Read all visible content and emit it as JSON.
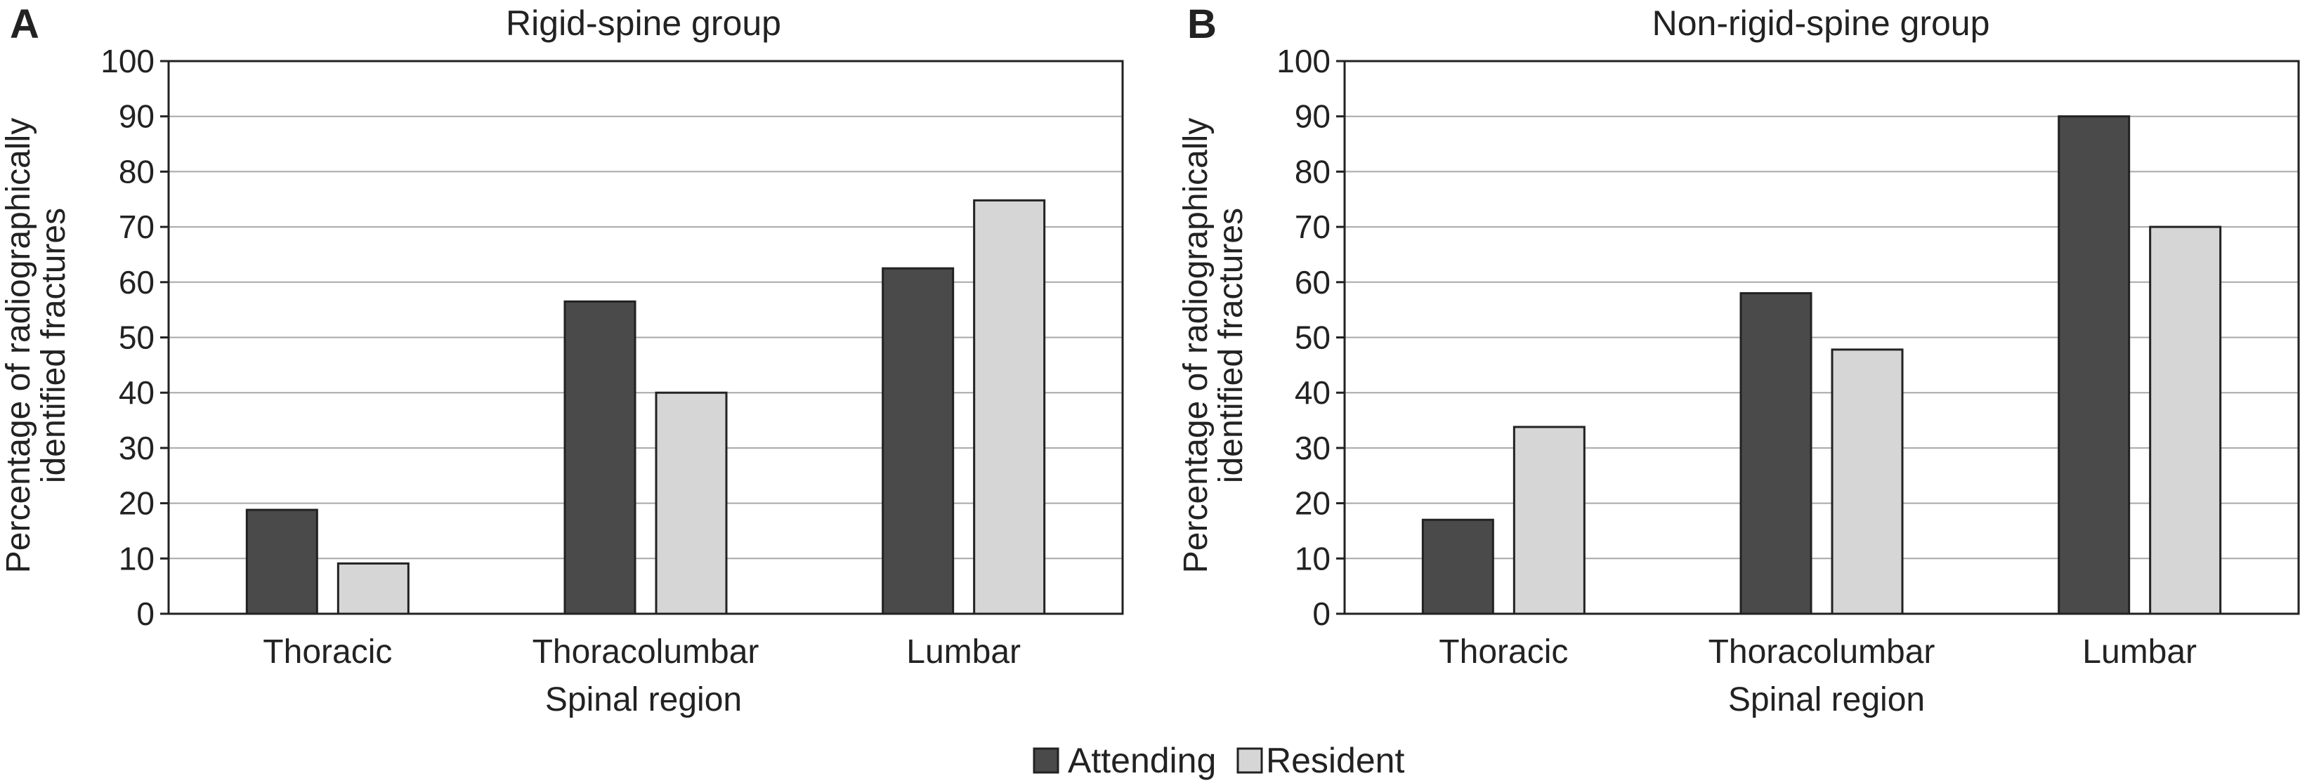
{
  "chart_data": [
    {
      "type": "bar",
      "panel": "A",
      "title": "Rigid-spine group",
      "xlabel": "Spinal region",
      "ylabel": [
        "Percentage of radiographically",
        "identified fractures"
      ],
      "categories": [
        "Thoracic",
        "Thoracolumbar",
        "Lumbar"
      ],
      "ylim": [
        0,
        100
      ],
      "yticks": [
        "0",
        "10",
        "20",
        "30",
        "40",
        "50",
        "60",
        "70",
        "80",
        "90",
        "100"
      ],
      "grid": true,
      "series": [
        {
          "name": "Attending",
          "color": "#4a4a4a",
          "values": [
            18.8,
            56.5,
            62.5
          ]
        },
        {
          "name": "Resident",
          "color": "#d6d6d6",
          "values": [
            9.1,
            40.0,
            74.8
          ]
        }
      ]
    },
    {
      "type": "bar",
      "panel": "B",
      "title": "Non-rigid-spine group",
      "xlabel": "Spinal region",
      "ylabel": [
        "Percentage of radiographically",
        "identified fractures"
      ],
      "categories": [
        "Thoracic",
        "Thoracolumbar",
        "Lumbar"
      ],
      "ylim": [
        0,
        100
      ],
      "yticks": [
        "0",
        "10",
        "20",
        "30",
        "40",
        "50",
        "60",
        "70",
        "80",
        "90",
        "100"
      ],
      "grid": true,
      "series": [
        {
          "name": "Attending",
          "color": "#4a4a4a",
          "values": [
            17.0,
            58.0,
            90.0
          ]
        },
        {
          "name": "Resident",
          "color": "#d6d6d6",
          "values": [
            33.8,
            47.8,
            70.0
          ]
        }
      ]
    }
  ],
  "legend": {
    "placement": "bottom-center",
    "items": [
      {
        "label": "Attending",
        "color": "#4a4a4a"
      },
      {
        "label": "Resident",
        "color": "#d6d6d6"
      }
    ]
  }
}
